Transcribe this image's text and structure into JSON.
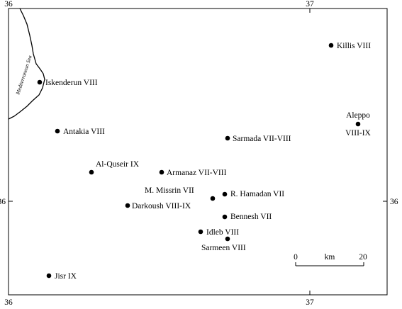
{
  "graticule": {
    "top_left_lon": "36",
    "top_right_lon": "37",
    "bottom_left_lon": "36",
    "bottom_right_lon": "37",
    "left_lat": "36",
    "right_lat": "36"
  },
  "sea_label": "Mediterranean Sea",
  "scale_bar": {
    "start": "0",
    "unit": "km",
    "end": "20"
  },
  "places": [
    {
      "id": "killis",
      "name": "Killis VIII"
    },
    {
      "id": "iskenderun",
      "name": "Iskenderun VIII"
    },
    {
      "id": "aleppo",
      "name": "Aleppo",
      "name2": "VIII-IX"
    },
    {
      "id": "antakia",
      "name": "Antakia VIII"
    },
    {
      "id": "sarmada",
      "name": "Sarmada VII-VIII"
    },
    {
      "id": "alqouseir",
      "name": "Al-Quseir IX"
    },
    {
      "id": "armanaz",
      "name": "Armanaz VII-VIII"
    },
    {
      "id": "missrin",
      "name": "M. Missrin VII"
    },
    {
      "id": "hamadan",
      "name": "R. Hamadan VII"
    },
    {
      "id": "darkoush",
      "name": "Darkoush VIII-IX"
    },
    {
      "id": "bennesh",
      "name": "Bennesh VII"
    },
    {
      "id": "idleb",
      "name": "Idleb VIII"
    },
    {
      "id": "sarmeen",
      "name": "Sarmeen VIII"
    },
    {
      "id": "jisr",
      "name": "Jisr IX"
    }
  ]
}
